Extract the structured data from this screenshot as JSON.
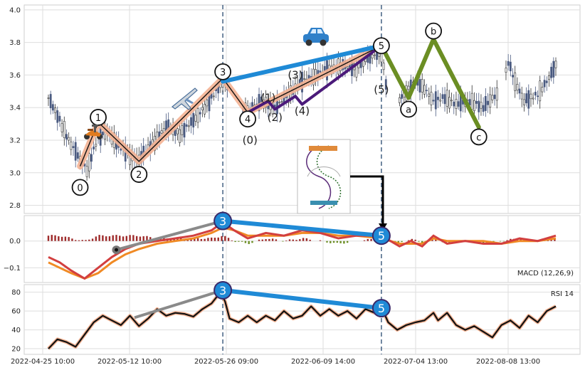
{
  "chart_data": [
    {
      "panel": "price",
      "type": "candlestick",
      "x_ticks": [
        "2022-04-25 10:00",
        "2022-05-12 10:00",
        "2022-05-26 09:00",
        "2022-06-09 14:00",
        "2022-07-04 13:00",
        "2022-08-08 13:00"
      ],
      "ylim": [
        2.75,
        4.03
      ],
      "y_ticks": [
        "2.8",
        "3.0",
        "3.2",
        "3.4",
        "3.6",
        "3.8",
        "4.0"
      ],
      "price_path": [
        [
          0,
          3.46
        ],
        [
          4,
          3.35
        ],
        [
          9,
          3.2
        ],
        [
          14,
          3.08
        ],
        [
          17,
          3.02
        ],
        [
          22,
          3.22
        ],
        [
          26,
          3.25
        ],
        [
          30,
          3.18
        ],
        [
          36,
          3.1
        ],
        [
          40,
          3.08
        ],
        [
          46,
          3.18
        ],
        [
          52,
          3.28
        ],
        [
          58,
          3.24
        ],
        [
          64,
          3.32
        ],
        [
          70,
          3.42
        ],
        [
          74,
          3.5
        ],
        [
          77,
          3.58
        ],
        [
          80,
          3.48
        ],
        [
          84,
          3.4
        ],
        [
          88,
          3.38
        ],
        [
          94,
          3.44
        ],
        [
          100,
          3.4
        ],
        [
          106,
          3.48
        ],
        [
          112,
          3.56
        ],
        [
          118,
          3.6
        ],
        [
          124,
          3.64
        ],
        [
          130,
          3.66
        ],
        [
          136,
          3.64
        ],
        [
          140,
          3.7
        ],
        [
          144,
          3.72
        ],
        [
          147,
          3.74
        ],
        [
          149,
          3.55
        ],
        [
          152,
          3.47
        ],
        [
          155,
          3.45
        ],
        [
          158,
          3.5
        ],
        [
          162,
          3.56
        ],
        [
          166,
          3.52
        ],
        [
          170,
          3.44
        ],
        [
          175,
          3.46
        ],
        [
          180,
          3.42
        ],
        [
          186,
          3.44
        ],
        [
          192,
          3.4
        ],
        [
          196,
          3.46
        ],
        [
          200,
          3.5
        ],
        [
          203,
          3.68
        ],
        [
          206,
          3.56
        ],
        [
          210,
          3.44
        ],
        [
          216,
          3.48
        ],
        [
          220,
          3.56
        ],
        [
          224,
          3.66
        ]
      ],
      "wave_labels": [
        {
          "text": "0",
          "x": 14,
          "y": 2.91,
          "circled": true
        },
        {
          "text": "1",
          "x": 22,
          "y": 3.34,
          "circled": true
        },
        {
          "text": "2",
          "x": 40,
          "y": 2.99,
          "circled": true
        },
        {
          "text": "3",
          "x": 77,
          "y": 3.62,
          "circled": true
        },
        {
          "text": "4",
          "x": 88,
          "y": 3.33,
          "circled": true
        },
        {
          "text": "5",
          "x": 147,
          "y": 3.78,
          "circled": true
        },
        {
          "text": "a",
          "x": 159,
          "y": 3.39,
          "circled": true
        },
        {
          "text": "b",
          "x": 170,
          "y": 3.87,
          "circled": true
        },
        {
          "text": "c",
          "x": 190,
          "y": 3.22,
          "circled": true
        },
        {
          "text": "(0)",
          "x": 89,
          "y": 3.2,
          "circled": false
        },
        {
          "text": "(1)",
          "x": 97,
          "y": 3.46,
          "circled": false
        },
        {
          "text": "(2)",
          "x": 100,
          "y": 3.34,
          "circled": false
        },
        {
          "text": "(3)",
          "x": 109,
          "y": 3.6,
          "circled": false
        },
        {
          "text": "(4)",
          "x": 112,
          "y": 3.38,
          "circled": false
        },
        {
          "text": "(5)",
          "x": 147,
          "y": 3.51,
          "circled": false
        }
      ],
      "wave_path": [
        [
          14,
          3.04
        ],
        [
          22,
          3.31
        ],
        [
          40,
          3.07
        ],
        [
          77,
          3.58
        ],
        [
          88,
          3.37
        ],
        [
          147,
          3.78
        ]
      ],
      "sub_wave_path": [
        [
          88,
          3.37
        ],
        [
          97,
          3.44
        ],
        [
          100,
          3.39
        ],
        [
          109,
          3.47
        ],
        [
          112,
          3.42
        ],
        [
          147,
          3.78
        ]
      ],
      "corrective_path": [
        [
          147,
          3.78
        ],
        [
          159,
          3.46
        ],
        [
          170,
          3.82
        ],
        [
          190,
          3.28
        ]
      ],
      "trend_line": [
        [
          77,
          3.56
        ],
        [
          147,
          3.78
        ]
      ],
      "vertical_markers_x": [
        77,
        147
      ],
      "icons": [
        "scooter-icon",
        "airplane-icon",
        "car-icon",
        "pattern-thumbnail"
      ],
      "colors": {
        "trend": "#1f8ad6",
        "wave": "#f4b393",
        "sub_wave": "#4b1a7a",
        "corrective": "#6b8e23",
        "candle_up": "#333333",
        "candle_down": "#4a5a80"
      }
    },
    {
      "panel": "macd",
      "type": "line",
      "label": "MACD (12,26,9)",
      "ylim": [
        -0.155,
        0.095
      ],
      "y_ticks": [
        "0.0",
        "−0.1"
      ],
      "macd": [
        [
          0,
          -0.06
        ],
        [
          5,
          -0.08
        ],
        [
          10,
          -0.11
        ],
        [
          16,
          -0.14
        ],
        [
          22,
          -0.1
        ],
        [
          28,
          -0.06
        ],
        [
          34,
          -0.03
        ],
        [
          40,
          -0.01
        ],
        [
          48,
          0.0
        ],
        [
          56,
          0.01
        ],
        [
          64,
          0.02
        ],
        [
          72,
          0.04
        ],
        [
          77,
          0.07
        ],
        [
          82,
          0.04
        ],
        [
          88,
          0.01
        ],
        [
          96,
          0.03
        ],
        [
          104,
          0.02
        ],
        [
          112,
          0.04
        ],
        [
          120,
          0.03
        ],
        [
          128,
          0.01
        ],
        [
          136,
          0.02
        ],
        [
          147,
          0.02
        ],
        [
          155,
          -0.02
        ],
        [
          160,
          0.0
        ],
        [
          165,
          -0.02
        ],
        [
          170,
          0.02
        ],
        [
          176,
          -0.01
        ],
        [
          184,
          0.0
        ],
        [
          192,
          -0.01
        ],
        [
          200,
          -0.01
        ],
        [
          208,
          0.01
        ],
        [
          216,
          0.0
        ],
        [
          224,
          0.02
        ]
      ],
      "signal": [
        [
          0,
          -0.08
        ],
        [
          5,
          -0.1
        ],
        [
          10,
          -0.12
        ],
        [
          16,
          -0.14
        ],
        [
          22,
          -0.12
        ],
        [
          28,
          -0.08
        ],
        [
          34,
          -0.05
        ],
        [
          40,
          -0.03
        ],
        [
          48,
          -0.01
        ],
        [
          56,
          0.0
        ],
        [
          64,
          0.01
        ],
        [
          72,
          0.03
        ],
        [
          77,
          0.05
        ],
        [
          82,
          0.04
        ],
        [
          88,
          0.02
        ],
        [
          96,
          0.02
        ],
        [
          104,
          0.02
        ],
        [
          112,
          0.03
        ],
        [
          120,
          0.03
        ],
        [
          128,
          0.02
        ],
        [
          136,
          0.02
        ],
        [
          147,
          0.01
        ],
        [
          155,
          -0.01
        ],
        [
          160,
          -0.01
        ],
        [
          165,
          -0.01
        ],
        [
          170,
          0.01
        ],
        [
          176,
          0.0
        ],
        [
          184,
          0.0
        ],
        [
          192,
          0.0
        ],
        [
          200,
          -0.01
        ],
        [
          208,
          0.0
        ],
        [
          216,
          0.0
        ],
        [
          224,
          0.01
        ]
      ],
      "divergence_labels": [
        {
          "text": "3",
          "x": 77,
          "y": 0.075
        },
        {
          "text": "5",
          "x": 147,
          "y": 0.02
        }
      ],
      "gray_line": [
        [
          30,
          -0.033
        ],
        [
          77,
          0.075
        ]
      ],
      "trend_line": [
        [
          77,
          0.075
        ],
        [
          147,
          0.02
        ]
      ]
    },
    {
      "panel": "rsi",
      "type": "line",
      "label": "RSI 14",
      "ylim": [
        14,
        88
      ],
      "y_ticks": [
        "20",
        "40",
        "60",
        "80"
      ],
      "rsi": [
        [
          0,
          20
        ],
        [
          4,
          30
        ],
        [
          8,
          27
        ],
        [
          12,
          22
        ],
        [
          16,
          35
        ],
        [
          20,
          48
        ],
        [
          24,
          55
        ],
        [
          28,
          50
        ],
        [
          32,
          45
        ],
        [
          36,
          55
        ],
        [
          40,
          44
        ],
        [
          44,
          52
        ],
        [
          48,
          62
        ],
        [
          52,
          55
        ],
        [
          56,
          58
        ],
        [
          60,
          57
        ],
        [
          64,
          54
        ],
        [
          68,
          62
        ],
        [
          72,
          68
        ],
        [
          76,
          80
        ],
        [
          78,
          70
        ],
        [
          80,
          52
        ],
        [
          84,
          48
        ],
        [
          88,
          55
        ],
        [
          92,
          48
        ],
        [
          96,
          55
        ],
        [
          100,
          50
        ],
        [
          104,
          60
        ],
        [
          108,
          52
        ],
        [
          112,
          55
        ],
        [
          116,
          65
        ],
        [
          120,
          55
        ],
        [
          124,
          62
        ],
        [
          128,
          55
        ],
        [
          132,
          60
        ],
        [
          136,
          52
        ],
        [
          140,
          62
        ],
        [
          144,
          58
        ],
        [
          147,
          64
        ],
        [
          150,
          48
        ],
        [
          154,
          40
        ],
        [
          158,
          45
        ],
        [
          162,
          48
        ],
        [
          166,
          50
        ],
        [
          170,
          58
        ],
        [
          172,
          50
        ],
        [
          176,
          58
        ],
        [
          180,
          45
        ],
        [
          184,
          40
        ],
        [
          188,
          44
        ],
        [
          192,
          38
        ],
        [
          196,
          32
        ],
        [
          200,
          45
        ],
        [
          204,
          50
        ],
        [
          208,
          42
        ],
        [
          212,
          55
        ],
        [
          216,
          48
        ],
        [
          220,
          60
        ],
        [
          224,
          65
        ]
      ],
      "divergence_labels": [
        {
          "text": "3",
          "x": 77,
          "y": 82
        },
        {
          "text": "5",
          "x": 147,
          "y": 63
        }
      ],
      "gray_line": [
        [
          38,
          53
        ],
        [
          77,
          82
        ]
      ],
      "trend_line": [
        [
          77,
          82
        ],
        [
          147,
          63
        ]
      ]
    }
  ]
}
